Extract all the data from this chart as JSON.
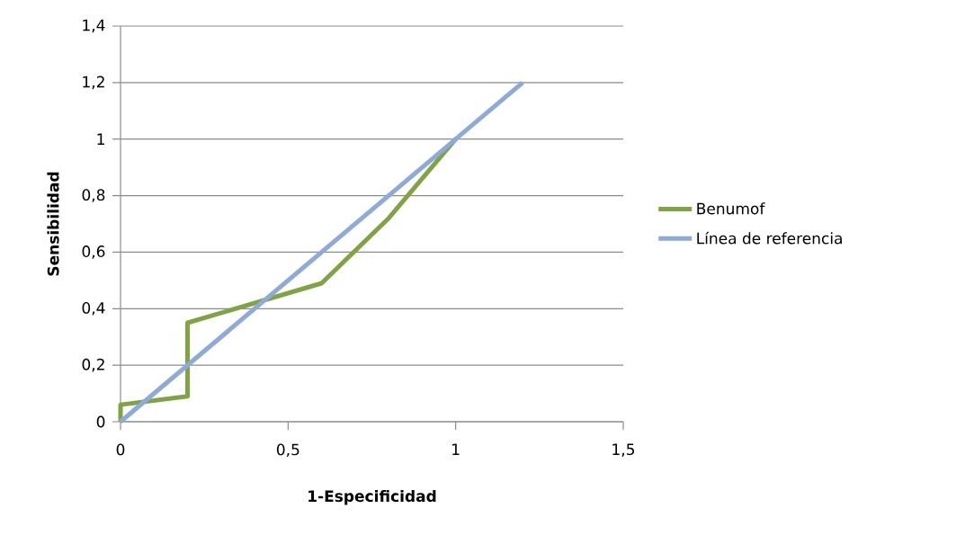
{
  "chart_data": {
    "type": "line",
    "xlabel": "1-Especificidad",
    "ylabel": "Sensibilidad",
    "series": [
      {
        "name": "Benumof",
        "color": "#80a344",
        "x": [
          0,
          0,
          0.2,
          0.2,
          0.6,
          0.8,
          1
        ],
        "values": [
          0,
          0.06,
          0.09,
          0.35,
          0.49,
          0.72,
          1
        ]
      },
      {
        "name": "Línea de referencia",
        "color": "#8eaad6",
        "x": [
          0,
          1.2
        ],
        "values": [
          0,
          1.2
        ]
      }
    ],
    "xlim": [
      0,
      1.5
    ],
    "xticks": [
      {
        "value": 0,
        "label": "0"
      },
      {
        "value": 0.5,
        "label": "0,5"
      },
      {
        "value": 1,
        "label": "1"
      },
      {
        "value": 1.5,
        "label": "1,5"
      }
    ],
    "ylim": [
      0,
      1.4
    ],
    "yticks": [
      {
        "value": 0,
        "label": "0"
      },
      {
        "value": 0.2,
        "label": "0,2"
      },
      {
        "value": 0.4,
        "label": "0,4"
      },
      {
        "value": 0.6,
        "label": "0,6"
      },
      {
        "value": 0.8,
        "label": "0,8"
      },
      {
        "value": 1,
        "label": "1"
      },
      {
        "value": 1.2,
        "label": "1,2"
      },
      {
        "value": 1.4,
        "label": "1,4"
      }
    ],
    "grid": "y",
    "legend": "right",
    "marker": "none",
    "line_style": "solid"
  }
}
